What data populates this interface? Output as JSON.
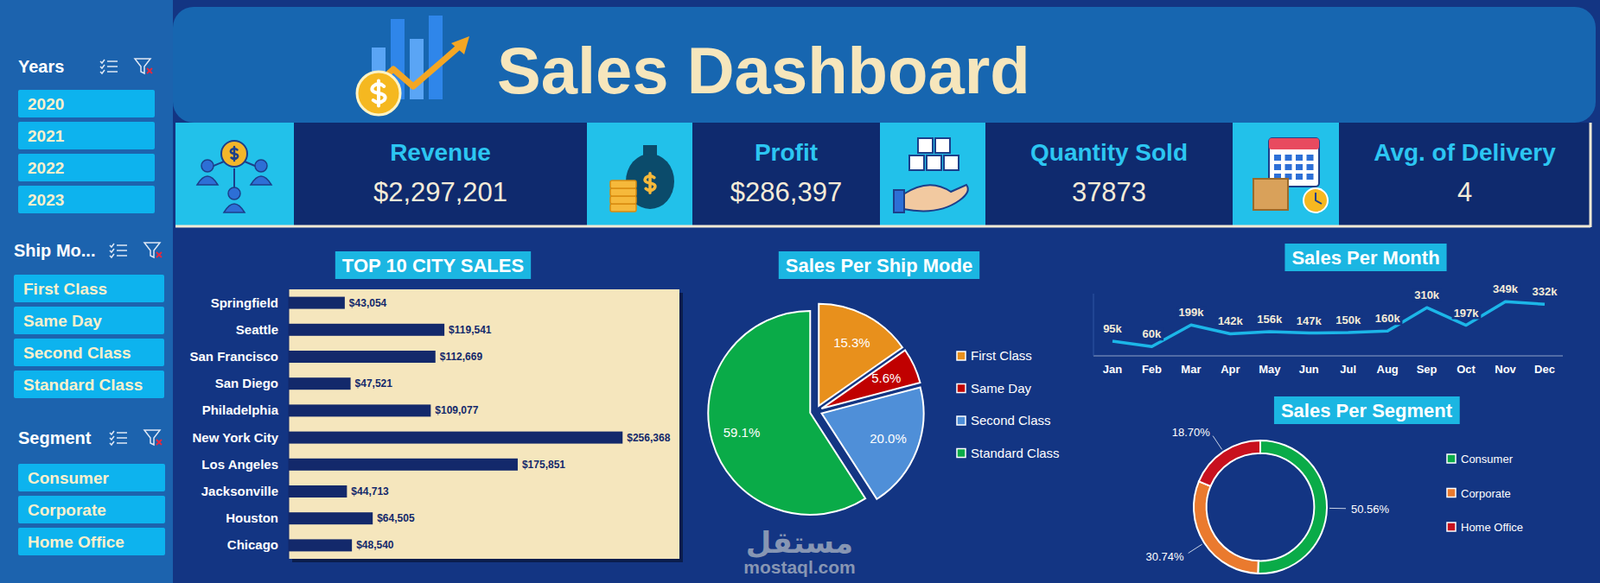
{
  "dashboard": {
    "title": "Sales Dashboard",
    "kpis": [
      {
        "label": "Revenue",
        "value": "$2,297,201"
      },
      {
        "label": "Profit",
        "value": "$286,397"
      },
      {
        "label": "Quantity Sold",
        "value": "37873"
      },
      {
        "label": "Avg. of Delivery",
        "value": "4"
      }
    ],
    "filters": [
      {
        "title": "Years",
        "options": [
          "2020",
          "2021",
          "2022",
          "2023"
        ]
      },
      {
        "title": "Ship Mo...",
        "options": [
          "First Class",
          "Same Day",
          "Second Class",
          "Standard Class"
        ]
      },
      {
        "title": "Segment",
        "options": [
          "Consumer",
          "Corporate",
          "Home Office"
        ]
      }
    ],
    "watermark": [
      "مستقل",
      "mostaql.com"
    ]
  },
  "chart_data": [
    {
      "type": "bar",
      "title": "TOP 10 CITY SALES",
      "orientation": "horizontal",
      "categories": [
        "Springfield",
        "Seattle",
        "San Francisco",
        "San Diego",
        "Philadelphia",
        "New York City",
        "Los Angeles",
        "Jacksonville",
        "Houston",
        "Chicago"
      ],
      "values": [
        43054,
        119541,
        112669,
        47521,
        109077,
        256368,
        175851,
        44713,
        64505,
        48540
      ],
      "value_labels": [
        "$43,054",
        "$119,541",
        "$112,669",
        "$47,521",
        "$109,077",
        "$256,368",
        "$175,851",
        "$44,713",
        "$64,505",
        "$48,540"
      ],
      "color": "#13296b",
      "xlim": [
        0,
        300000
      ],
      "tick_labels": false,
      "data_labels": true,
      "grid": false
    },
    {
      "type": "pie",
      "title": "Sales Per Ship Mode",
      "categories": [
        "First Class",
        "Same Day",
        "Second Class",
        "Standard Class"
      ],
      "values": [
        15.3,
        5.6,
        20.0,
        59.1
      ],
      "value_labels": [
        "15.3%",
        "5.6%",
        "20.0%",
        "59.1%"
      ],
      "colors": [
        "#e8901c",
        "#c00000",
        "#4f8fd8",
        "#0aab48"
      ],
      "data_labels": true,
      "legend": "right"
    },
    {
      "type": "line",
      "title": "Sales Per Month",
      "categories": [
        "Jan",
        "Feb",
        "Mar",
        "Apr",
        "May",
        "Jun",
        "Jul",
        "Aug",
        "Sep",
        "Oct",
        "Nov",
        "Dec"
      ],
      "values": [
        95000,
        60000,
        199000,
        142000,
        156000,
        147000,
        150000,
        160000,
        310000,
        197000,
        349000,
        332000
      ],
      "value_labels": [
        "95k",
        "60k",
        "199k",
        "142k",
        "156k",
        "147k",
        "150k",
        "160k",
        "310k",
        "197k",
        "349k",
        "332k"
      ],
      "color": "#1cb6e8",
      "ylim": [
        0,
        400000
      ],
      "tick_labels": "x",
      "data_labels": true,
      "grid": false
    },
    {
      "type": "donut",
      "title": "Sales Per Segment",
      "categories": [
        "Consumer",
        "Corporate",
        "Home Office"
      ],
      "values": [
        50.56,
        30.74,
        18.7
      ],
      "value_labels": [
        "50.56%",
        "30.74%",
        "18.70%"
      ],
      "colors": [
        "#0aab48",
        "#ea7a2e",
        "#c8101e"
      ],
      "data_labels": true,
      "legend": "right"
    }
  ]
}
